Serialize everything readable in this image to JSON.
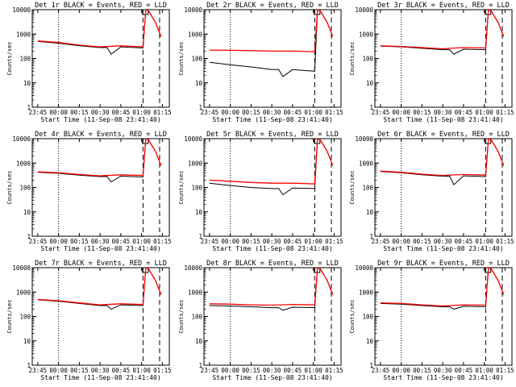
{
  "chart_data": [
    {
      "type": "line",
      "title": "Det 1r BLACK = Events, RED = LLD",
      "xlabel": "Start Time (11-Sep-08 23:41:40)",
      "ylabel": "Counts/sec",
      "xtick_labels": [
        "23:45",
        "00:00",
        "00:15",
        "00:30",
        "00:45",
        "01:00",
        "01:15"
      ],
      "ytick_labels": [
        "1",
        "10",
        "100",
        "1000",
        "10000"
      ],
      "yscale": "log",
      "ylim": [
        1,
        10000
      ],
      "series": [
        {
          "color": "#000000",
          "x": [
            "23:45",
            "00:00",
            "00:15",
            "00:30",
            "00:35",
            "00:38",
            "00:45",
            "01:01",
            "01:03",
            "01:05",
            "01:10",
            "01:14"
          ],
          "y": [
            500,
            420,
            330,
            280,
            280,
            150,
            300,
            270,
            10000,
            9000,
            3000,
            800
          ]
        },
        {
          "color": "#ff0000",
          "x": [
            "23:45",
            "00:00",
            "00:15",
            "00:30",
            "00:45",
            "01:01",
            "01:03",
            "01:05",
            "01:10",
            "01:14"
          ],
          "y": [
            520,
            450,
            350,
            300,
            330,
            300,
            10000,
            9000,
            3000,
            800
          ]
        }
      ]
    },
    {
      "type": "line",
      "title": "Det 2r BLACK = Events, RED = LLD",
      "xlabel": "Start Time (11-Sep-08 23:41:40)",
      "ylabel": "Counts/sec",
      "xtick_labels": [
        "23:45",
        "00:00",
        "00:15",
        "00:30",
        "00:45",
        "01:00",
        "01:15"
      ],
      "ytick_labels": [
        "1",
        "10",
        "100",
        "1000",
        "10000"
      ],
      "yscale": "log",
      "ylim": [
        1,
        10000
      ],
      "series": [
        {
          "color": "#000000",
          "x": [
            "23:45",
            "00:00",
            "00:15",
            "00:30",
            "00:35",
            "00:38",
            "00:45",
            "01:01",
            "01:03",
            "01:05",
            "01:10",
            "01:14"
          ],
          "y": [
            70,
            55,
            45,
            35,
            35,
            18,
            35,
            30,
            10000,
            9000,
            3000,
            800
          ]
        },
        {
          "color": "#ff0000",
          "x": [
            "23:45",
            "00:00",
            "00:15",
            "00:30",
            "00:45",
            "01:01",
            "01:03",
            "01:05",
            "01:10",
            "01:14"
          ],
          "y": [
            220,
            215,
            210,
            200,
            200,
            190,
            10000,
            9000,
            3000,
            800
          ]
        }
      ]
    },
    {
      "type": "line",
      "title": "Det 3r BLACK = Events, RED = LLD",
      "xlabel": "Start Time (11-Sep-08 23:41:40)",
      "ylabel": "Counts/sec",
      "xtick_labels": [
        "23:45",
        "00:00",
        "00:15",
        "00:30",
        "00:45",
        "01:00",
        "01:15"
      ],
      "ytick_labels": [
        "1",
        "10",
        "100",
        "1000",
        "10000"
      ],
      "yscale": "log",
      "ylim": [
        1,
        10000
      ],
      "series": [
        {
          "color": "#000000",
          "x": [
            "23:45",
            "00:00",
            "00:15",
            "00:30",
            "00:35",
            "00:38",
            "00:45",
            "01:01",
            "01:03",
            "01:05",
            "01:10",
            "01:14"
          ],
          "y": [
            320,
            300,
            260,
            230,
            230,
            150,
            240,
            230,
            10000,
            9000,
            3000,
            800
          ]
        },
        {
          "color": "#ff0000",
          "x": [
            "23:45",
            "00:00",
            "00:15",
            "00:30",
            "00:45",
            "01:01",
            "01:03",
            "01:05",
            "01:10",
            "01:14"
          ],
          "y": [
            330,
            310,
            280,
            250,
            280,
            270,
            10000,
            9000,
            3000,
            800
          ]
        }
      ]
    },
    {
      "type": "line",
      "title": "Det 4r BLACK = Events, RED = LLD",
      "xlabel": "Start Time (11-Sep-08 23:41:40)",
      "ylabel": "Counts/sec",
      "xtick_labels": [
        "23:45",
        "00:00",
        "00:15",
        "00:30",
        "00:45",
        "01:00",
        "01:15"
      ],
      "ytick_labels": [
        "1",
        "10",
        "100",
        "1000",
        "10000"
      ],
      "yscale": "log",
      "ylim": [
        1,
        10000
      ],
      "series": [
        {
          "color": "#000000",
          "x": [
            "23:45",
            "00:00",
            "00:15",
            "00:30",
            "00:35",
            "00:38",
            "00:45",
            "01:01",
            "01:03",
            "01:05",
            "01:10",
            "01:14"
          ],
          "y": [
            420,
            380,
            320,
            280,
            280,
            170,
            290,
            270,
            10000,
            9000,
            3000,
            800
          ]
        },
        {
          "color": "#ff0000",
          "x": [
            "23:45",
            "00:00",
            "00:15",
            "00:30",
            "00:45",
            "01:01",
            "01:03",
            "01:05",
            "01:10",
            "01:14"
          ],
          "y": [
            440,
            400,
            340,
            300,
            330,
            310,
            10000,
            9000,
            3000,
            800
          ]
        }
      ]
    },
    {
      "type": "line",
      "title": "Det 5r BLACK = Events, RED = LLD",
      "xlabel": "Start Time (11-Sep-08 23:41:40)",
      "ylabel": "Counts/sec",
      "xtick_labels": [
        "23:45",
        "00:00",
        "00:15",
        "00:30",
        "00:45",
        "01:00",
        "01:15"
      ],
      "ytick_labels": [
        "1",
        "10",
        "100",
        "1000",
        "10000"
      ],
      "yscale": "log",
      "ylim": [
        1,
        10000
      ],
      "series": [
        {
          "color": "#000000",
          "x": [
            "23:45",
            "00:00",
            "00:15",
            "00:30",
            "00:35",
            "00:38",
            "00:45",
            "01:01",
            "01:03",
            "01:05",
            "01:10",
            "01:14"
          ],
          "y": [
            150,
            120,
            100,
            90,
            90,
            50,
            95,
            90,
            10000,
            9000,
            3000,
            800
          ]
        },
        {
          "color": "#ff0000",
          "x": [
            "23:45",
            "00:00",
            "00:15",
            "00:30",
            "00:45",
            "01:01",
            "01:03",
            "01:05",
            "01:10",
            "01:14"
          ],
          "y": [
            200,
            180,
            160,
            150,
            150,
            140,
            10000,
            9000,
            3000,
            800
          ]
        }
      ]
    },
    {
      "type": "line",
      "title": "Det 6r BLACK = Events, RED = LLD",
      "xlabel": "Start Time (11-Sep-08 23:41:40)",
      "ylabel": "Counts/sec",
      "xtick_labels": [
        "23:45",
        "00:00",
        "00:15",
        "00:30",
        "00:45",
        "01:00",
        "01:15"
      ],
      "ytick_labels": [
        "1",
        "10",
        "100",
        "1000",
        "10000"
      ],
      "yscale": "log",
      "ylim": [
        1,
        10000
      ],
      "series": [
        {
          "color": "#000000",
          "x": [
            "23:45",
            "00:00",
            "00:15",
            "00:30",
            "00:35",
            "00:38",
            "00:45",
            "01:01",
            "01:03",
            "01:05",
            "01:10",
            "01:14"
          ],
          "y": [
            450,
            400,
            330,
            290,
            290,
            130,
            300,
            280,
            10000,
            9000,
            3000,
            800
          ]
        },
        {
          "color": "#ff0000",
          "x": [
            "23:45",
            "00:00",
            "00:15",
            "00:30",
            "00:45",
            "01:01",
            "01:03",
            "01:05",
            "01:10",
            "01:14"
          ],
          "y": [
            470,
            420,
            350,
            310,
            340,
            320,
            10000,
            9000,
            3000,
            800
          ]
        }
      ]
    },
    {
      "type": "line",
      "title": "Det 7r BLACK = Events, RED = LLD",
      "xlabel": "Start Time (11-Sep-08 23:41:40)",
      "ylabel": "Counts/sec",
      "xtick_labels": [
        "23:45",
        "00:00",
        "00:15",
        "00:30",
        "00:45",
        "01:00",
        "01:15"
      ],
      "ytick_labels": [
        "1",
        "10",
        "100",
        "1000",
        "10000"
      ],
      "yscale": "log",
      "ylim": [
        1,
        10000
      ],
      "series": [
        {
          "color": "#000000",
          "x": [
            "23:45",
            "00:00",
            "00:15",
            "00:30",
            "00:35",
            "00:38",
            "00:45",
            "01:01",
            "01:03",
            "01:05",
            "01:10",
            "01:14"
          ],
          "y": [
            480,
            420,
            340,
            280,
            280,
            200,
            300,
            280,
            10000,
            9000,
            3000,
            800
          ]
        },
        {
          "color": "#ff0000",
          "x": [
            "23:45",
            "00:00",
            "00:15",
            "00:30",
            "00:45",
            "01:01",
            "01:03",
            "01:05",
            "01:10",
            "01:14"
          ],
          "y": [
            500,
            440,
            360,
            300,
            330,
            310,
            10000,
            9000,
            3000,
            800
          ]
        }
      ]
    },
    {
      "type": "line",
      "title": "Det 8r BLACK = Events, RED = LLD",
      "xlabel": "Start Time (11-Sep-08 23:41:40)",
      "ylabel": "Counts/sec",
      "xtick_labels": [
        "23:45",
        "00:00",
        "00:15",
        "00:30",
        "00:45",
        "01:00",
        "01:15"
      ],
      "ytick_labels": [
        "1",
        "10",
        "100",
        "1000",
        "10000"
      ],
      "yscale": "log",
      "ylim": [
        1,
        10000
      ],
      "series": [
        {
          "color": "#000000",
          "x": [
            "23:45",
            "00:00",
            "00:15",
            "00:30",
            "00:35",
            "00:38",
            "00:45",
            "01:01",
            "01:03",
            "01:05",
            "01:10",
            "01:14"
          ],
          "y": [
            280,
            270,
            250,
            230,
            230,
            180,
            240,
            230,
            10000,
            9000,
            3000,
            800
          ]
        },
        {
          "color": "#ff0000",
          "x": [
            "23:45",
            "00:00",
            "00:15",
            "00:30",
            "00:45",
            "01:01",
            "01:03",
            "01:05",
            "01:10",
            "01:14"
          ],
          "y": [
            330,
            320,
            300,
            290,
            310,
            300,
            10000,
            9000,
            3000,
            800
          ]
        }
      ]
    },
    {
      "type": "line",
      "title": "Det 9r BLACK = Events, RED = LLD",
      "xlabel": "Start Time (11-Sep-08 23:41:40)",
      "ylabel": "Counts/sec",
      "xtick_labels": [
        "23:45",
        "00:00",
        "00:15",
        "00:30",
        "00:45",
        "01:00",
        "01:15"
      ],
      "ytick_labels": [
        "1",
        "10",
        "100",
        "1000",
        "10000"
      ],
      "yscale": "log",
      "ylim": [
        1,
        10000
      ],
      "series": [
        {
          "color": "#000000",
          "x": [
            "23:45",
            "00:00",
            "00:15",
            "00:30",
            "00:35",
            "00:38",
            "00:45",
            "01:01",
            "01:03",
            "01:05",
            "01:10",
            "01:14"
          ],
          "y": [
            340,
            320,
            280,
            250,
            250,
            200,
            260,
            250,
            10000,
            9000,
            3000,
            800
          ]
        },
        {
          "color": "#ff0000",
          "x": [
            "23:45",
            "00:00",
            "00:15",
            "00:30",
            "00:45",
            "01:01",
            "01:03",
            "01:05",
            "01:10",
            "01:14"
          ],
          "y": [
            360,
            340,
            300,
            270,
            300,
            290,
            10000,
            9000,
            3000,
            800
          ]
        }
      ]
    }
  ]
}
